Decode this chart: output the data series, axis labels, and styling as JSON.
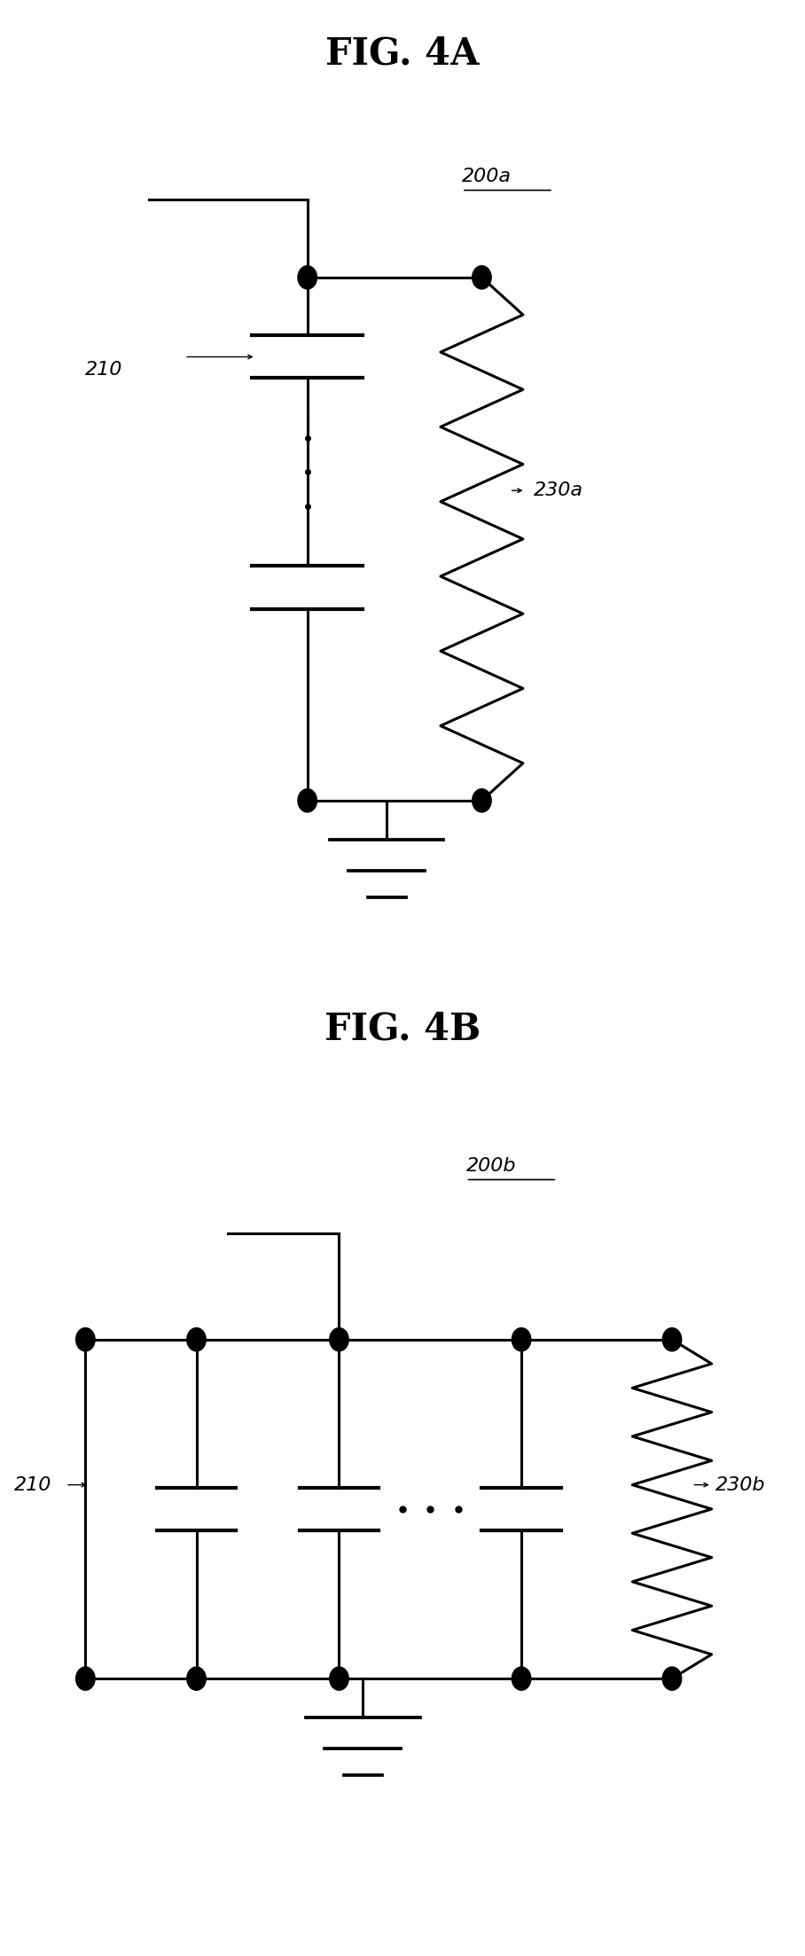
{
  "fig_title_4A": "FIG. 4A",
  "fig_title_4B": "FIG. 4B",
  "label_200a": "200a",
  "label_200b": "200b",
  "label_210": "210",
  "label_230a": "230a",
  "label_230b": "230b",
  "bg_color": "#ffffff",
  "line_color": "#000000",
  "line_width": 2.2,
  "font_size_title": 30,
  "font_size_label": 16
}
